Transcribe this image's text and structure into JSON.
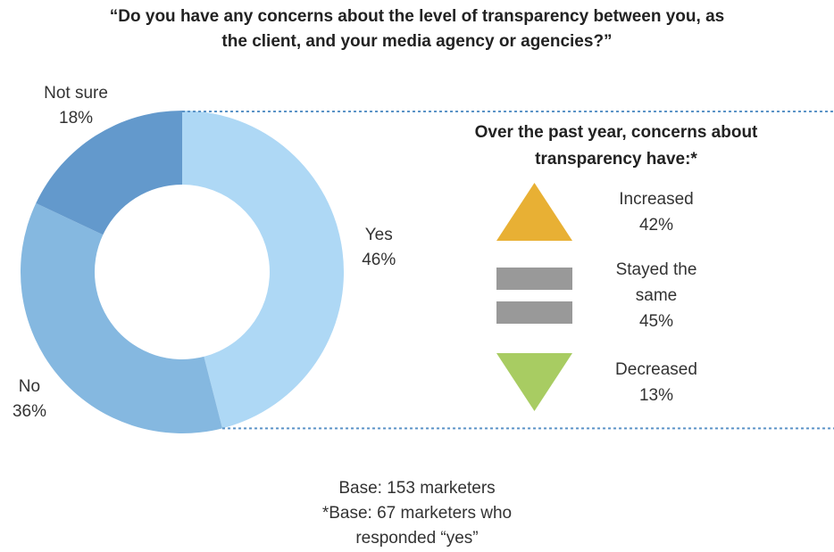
{
  "chart_data": [
    {
      "type": "pie",
      "title": "“Do you have any concerns about the level of transparency between you, as the client, and your media agency or agencies?”",
      "categories": [
        "Yes",
        "No",
        "Not sure"
      ],
      "values": [
        46,
        36,
        18
      ],
      "value_labels": [
        "46%",
        "36%",
        "18%"
      ],
      "colors": [
        "#aed8f5",
        "#85b8e0",
        "#6399cc"
      ],
      "donut": true,
      "notes": [
        "Base: 153 marketers",
        "*Base: 67 marketers who responded “yes”"
      ]
    },
    {
      "type": "icon-list",
      "title": "Over the past year, concerns about transparency have:*",
      "categories": [
        "Increased",
        "Stayed the same",
        "Decreased"
      ],
      "values": [
        42,
        45,
        13
      ],
      "value_labels": [
        "42%",
        "45%",
        "13%"
      ],
      "colors": [
        "#e8b034",
        "#999999",
        "#a8cc62"
      ]
    }
  ]
}
